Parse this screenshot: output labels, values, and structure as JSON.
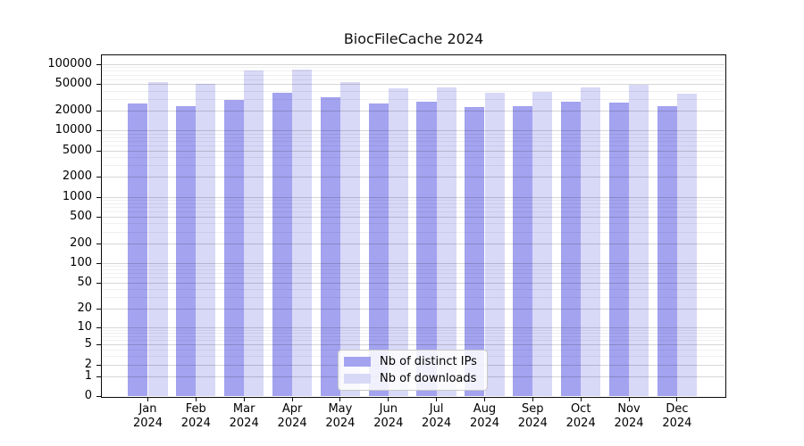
{
  "title": "BiocFileCache 2024",
  "chart_data": {
    "type": "bar",
    "title": "BiocFileCache 2024",
    "categories": [
      "Jan",
      "Feb",
      "Mar",
      "Apr",
      "May",
      "Jun",
      "Jul",
      "Aug",
      "Sep",
      "Oct",
      "Nov",
      "Dec"
    ],
    "year_label": "2024",
    "series": [
      {
        "name": "Nb of distinct IPs",
        "color": "#a3a3f0",
        "values": [
          25600,
          23300,
          29300,
          36800,
          31500,
          25600,
          27000,
          22700,
          23500,
          27700,
          26400,
          23100
        ]
      },
      {
        "name": "Nb of downloads",
        "color": "#d8d8f7",
        "values": [
          54300,
          51000,
          80500,
          84300,
          53300,
          43000,
          44300,
          37500,
          38700,
          44300,
          48600,
          35700
        ]
      }
    ],
    "xlabel": "",
    "ylabel": "",
    "yscale": "log1p",
    "ylim": [
      0,
      100000
    ],
    "y_ticks": [
      0,
      1,
      2,
      5,
      10,
      20,
      50,
      100,
      200,
      500,
      1000,
      2000,
      5000,
      10000,
      20000,
      50000,
      100000
    ],
    "grid": true,
    "legend_position": "lower center"
  },
  "legend": {
    "items": [
      "Nb of distinct IPs",
      "Nb of downloads"
    ]
  },
  "colors": {
    "distinct_ips": "#a3a3f0",
    "downloads": "#d8d8f7",
    "grid_major": "#d6d6d6",
    "grid_minor": "#efefef",
    "axis": "#0a0a0a"
  }
}
